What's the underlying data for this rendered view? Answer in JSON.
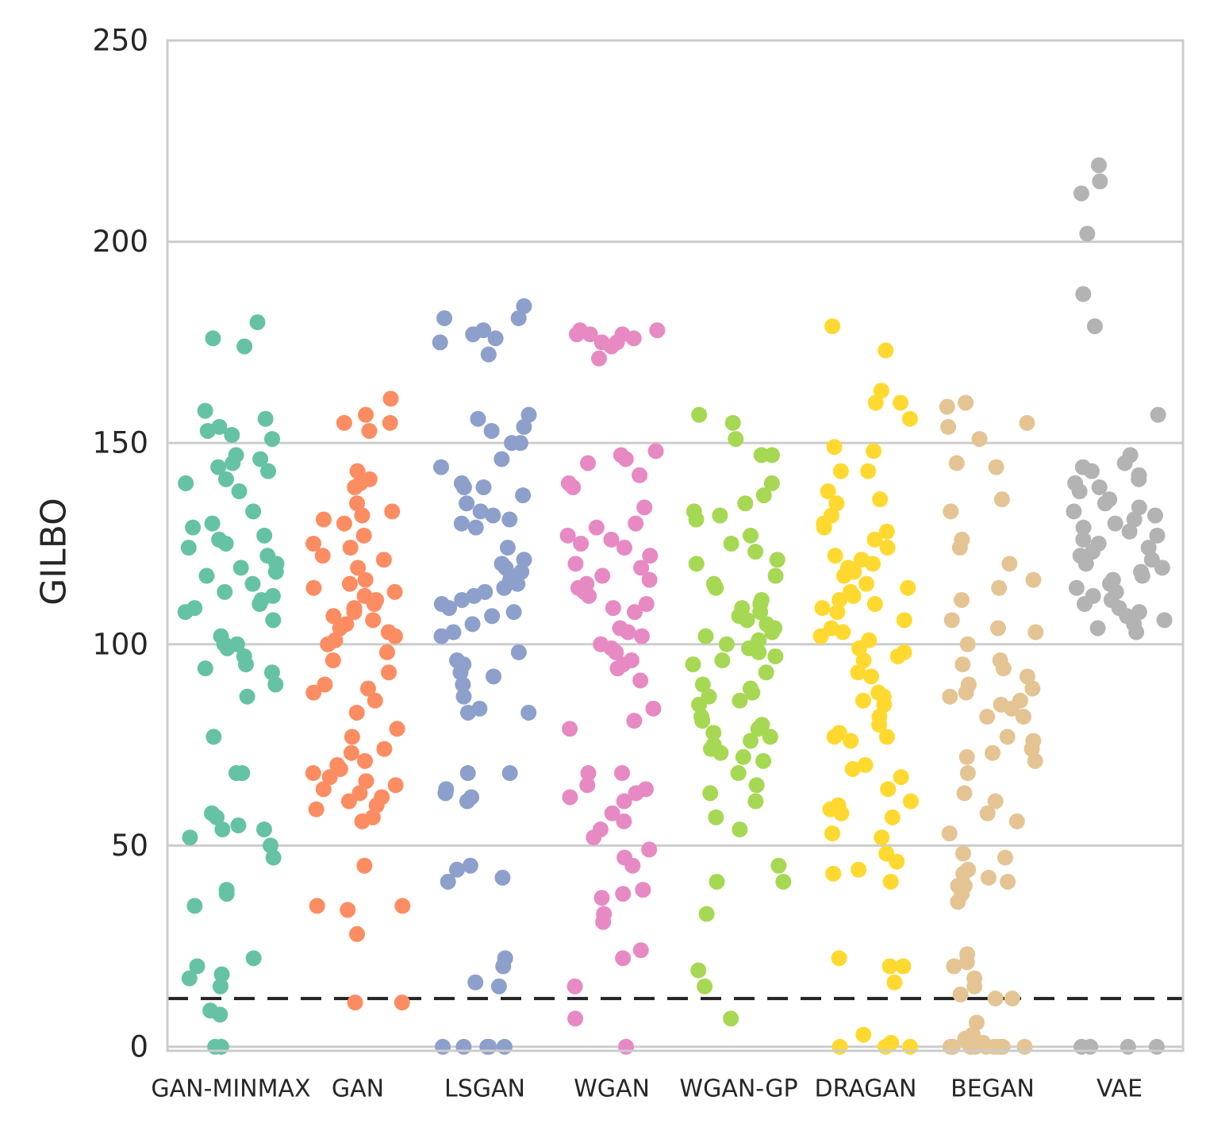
{
  "chart_data": {
    "type": "scatter",
    "subtype": "strip",
    "title": "",
    "xlabel": "",
    "ylabel": "GILBO",
    "ylim": [
      -1,
      250
    ],
    "yticks": [
      0,
      50,
      100,
      150,
      200,
      250
    ],
    "grid": true,
    "legend": "none",
    "reference_line": {
      "y": 12,
      "style": "dashed",
      "color": "#222222"
    },
    "categories": [
      "GAN-MINMAX",
      "GAN",
      "LSGAN",
      "WGAN",
      "WGAN-GP",
      "DRAGAN",
      "BEGAN",
      "VAE"
    ],
    "series": [
      {
        "name": "GAN-MINMAX",
        "color": "#66c2a5",
        "values": [
          180,
          176,
          174,
          158,
          156,
          154,
          153,
          152,
          151,
          147,
          146,
          145,
          144,
          143,
          141,
          140,
          138,
          133,
          130,
          129,
          127,
          126,
          125,
          124,
          122,
          120,
          119,
          118,
          117,
          115,
          113,
          112,
          111,
          110,
          109,
          108,
          106,
          102,
          100,
          100,
          99,
          97,
          95,
          94,
          93,
          90,
          87,
          77,
          68,
          68,
          58,
          57,
          55,
          54,
          54,
          52,
          50,
          47,
          39,
          38,
          35,
          22,
          20,
          18,
          17,
          15,
          9,
          8,
          0,
          0
        ]
      },
      {
        "name": "GAN",
        "color": "#fc8d62",
        "values": [
          161,
          157,
          155,
          155,
          153,
          143,
          141,
          140,
          139,
          135,
          133,
          132,
          131,
          130,
          127,
          125,
          124,
          122,
          121,
          119,
          116,
          115,
          114,
          113,
          112,
          111,
          110,
          109,
          108,
          107,
          106,
          105,
          104,
          103,
          102,
          101,
          100,
          98,
          96,
          93,
          90,
          89,
          88,
          86,
          83,
          79,
          77,
          74,
          73,
          71,
          70,
          69,
          68,
          67,
          66,
          65,
          64,
          63,
          62,
          61,
          60,
          59,
          57,
          56,
          45,
          35,
          35,
          34,
          28,
          11,
          11
        ]
      },
      {
        "name": "LSGAN",
        "color": "#8da0cb",
        "values": [
          184,
          181,
          181,
          178,
          177,
          176,
          175,
          172,
          157,
          156,
          154,
          153,
          150,
          150,
          146,
          144,
          140,
          139,
          139,
          137,
          135,
          133,
          132,
          131,
          130,
          129,
          124,
          121,
          120,
          119,
          118,
          117,
          116,
          115,
          114,
          113,
          112,
          111,
          110,
          109,
          108,
          107,
          105,
          103,
          102,
          98,
          96,
          95,
          93,
          92,
          90,
          87,
          84,
          83,
          83,
          68,
          68,
          64,
          63,
          62,
          61,
          45,
          44,
          42,
          41,
          22,
          20,
          16,
          15,
          0,
          0,
          0,
          0,
          0
        ]
      },
      {
        "name": "WGAN",
        "color": "#e78ac3",
        "values": [
          178,
          178,
          177,
          177,
          177,
          176,
          175,
          175,
          174,
          171,
          148,
          147,
          146,
          145,
          142,
          140,
          139,
          134,
          130,
          129,
          127,
          126,
          125,
          124,
          122,
          120,
          119,
          117,
          116,
          115,
          114,
          113,
          112,
          110,
          109,
          108,
          104,
          103,
          102,
          100,
          99,
          98,
          96,
          95,
          94,
          91,
          84,
          81,
          79,
          68,
          68,
          65,
          64,
          63,
          62,
          61,
          58,
          56,
          54,
          52,
          49,
          47,
          45,
          39,
          38,
          37,
          33,
          31,
          24,
          22,
          15,
          7,
          0
        ]
      },
      {
        "name": "WGAN-GP",
        "color": "#a6d854",
        "values": [
          157,
          155,
          151,
          147,
          147,
          140,
          137,
          135,
          133,
          132,
          131,
          127,
          125,
          123,
          121,
          120,
          117,
          115,
          114,
          111,
          110,
          109,
          108,
          107,
          106,
          105,
          104,
          103,
          102,
          101,
          100,
          99,
          98,
          97,
          96,
          95,
          93,
          90,
          89,
          88,
          87,
          86,
          85,
          82,
          81,
          80,
          79,
          78,
          77,
          76,
          75,
          74,
          73,
          72,
          71,
          68,
          65,
          63,
          61,
          57,
          54,
          45,
          41,
          41,
          33,
          19,
          15,
          7
        ]
      },
      {
        "name": "DRAGAN",
        "color": "#ffd92f",
        "values": [
          179,
          173,
          163,
          160,
          160,
          156,
          149,
          148,
          143,
          143,
          138,
          136,
          135,
          132,
          130,
          129,
          128,
          126,
          124,
          122,
          121,
          120,
          119,
          118,
          117,
          115,
          114,
          113,
          112,
          111,
          110,
          109,
          108,
          106,
          104,
          103,
          102,
          101,
          99,
          98,
          97,
          96,
          93,
          92,
          88,
          87,
          86,
          85,
          82,
          80,
          78,
          77,
          77,
          76,
          70,
          69,
          67,
          64,
          61,
          60,
          59,
          58,
          57,
          53,
          52,
          48,
          46,
          44,
          43,
          41,
          22,
          20,
          20,
          16,
          3,
          1,
          0,
          0,
          0
        ]
      },
      {
        "name": "BEGAN",
        "color": "#e5c494",
        "values": [
          160,
          159,
          155,
          154,
          151,
          145,
          144,
          136,
          133,
          126,
          124,
          120,
          116,
          114,
          111,
          106,
          104,
          103,
          100,
          96,
          95,
          94,
          92,
          90,
          89,
          88,
          87,
          86,
          85,
          84,
          82,
          82,
          77,
          76,
          74,
          73,
          72,
          71,
          68,
          63,
          61,
          58,
          56,
          53,
          48,
          47,
          44,
          43,
          42,
          41,
          40,
          40,
          38,
          36,
          23,
          21,
          20,
          17,
          15,
          13,
          12,
          12,
          6,
          3,
          2,
          1,
          0,
          0,
          0,
          0,
          0,
          0,
          0,
          0,
          0,
          0,
          0
        ]
      },
      {
        "name": "VAE",
        "color": "#b3b3b3",
        "values": [
          219,
          215,
          212,
          202,
          187,
          179,
          157,
          147,
          145,
          144,
          143,
          142,
          141,
          140,
          139,
          138,
          136,
          135,
          134,
          133,
          132,
          131,
          130,
          129,
          128,
          127,
          126,
          125,
          124,
          123,
          122,
          121,
          120,
          119,
          118,
          117,
          116,
          115,
          114,
          113,
          112,
          111,
          110,
          109,
          108,
          107,
          106,
          105,
          104,
          103,
          0,
          0,
          0,
          0
        ]
      }
    ]
  }
}
